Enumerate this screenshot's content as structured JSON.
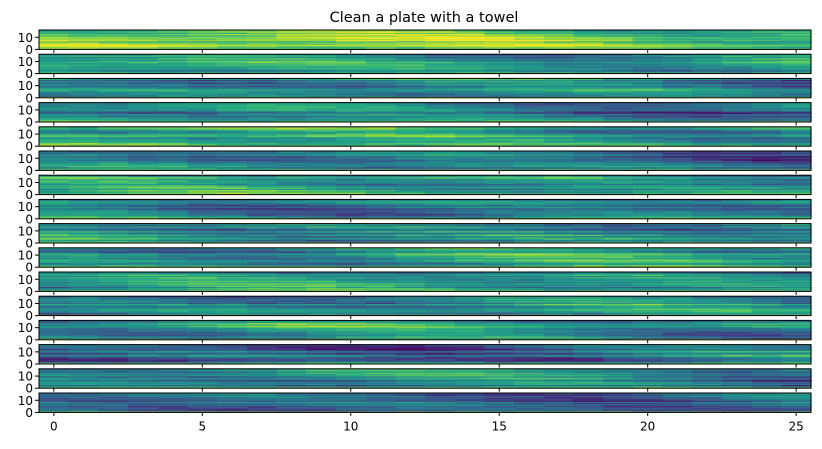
{
  "chart_data": {
    "type": "heatmap",
    "title": "Clean a plate with a towel",
    "colormap": "viridis",
    "panel_count": 16,
    "x_range": [
      -0.5,
      25.5
    ],
    "x_ticks": [
      0,
      5,
      10,
      15,
      20,
      25
    ],
    "x_tick_labels": [
      "0",
      "5",
      "10",
      "15",
      "20",
      "25"
    ],
    "y_range": [
      0,
      16
    ],
    "y_ticks": [
      0,
      10
    ],
    "y_tick_labels": [
      "0",
      "10"
    ],
    "panel_rows": 16,
    "panel_columns": 26,
    "panels": [
      {
        "index": 1,
        "mean_level": 0.74
      },
      {
        "index": 2,
        "mean_level": 0.55
      },
      {
        "index": 3,
        "mean_level": 0.42
      },
      {
        "index": 4,
        "mean_level": 0.44
      },
      {
        "index": 5,
        "mean_level": 0.56
      },
      {
        "index": 6,
        "mean_level": 0.36
      },
      {
        "index": 7,
        "mean_level": 0.5
      },
      {
        "index": 8,
        "mean_level": 0.44
      },
      {
        "index": 9,
        "mean_level": 0.52
      },
      {
        "index": 10,
        "mean_level": 0.54
      },
      {
        "index": 11,
        "mean_level": 0.5
      },
      {
        "index": 12,
        "mean_level": 0.46
      },
      {
        "index": 13,
        "mean_level": 0.5
      },
      {
        "index": 14,
        "mean_level": 0.38
      },
      {
        "index": 15,
        "mean_level": 0.42
      },
      {
        "index": 16,
        "mean_level": 0.4
      }
    ]
  }
}
